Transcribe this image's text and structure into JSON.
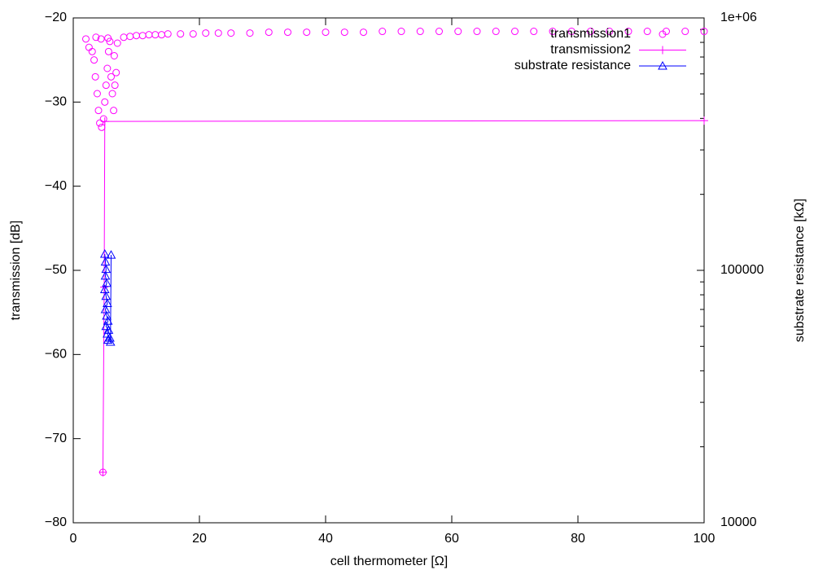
{
  "chart_data": {
    "type": "scatter",
    "x_label": "cell thermometer [Ω]",
    "y_label": "transmission [dB]",
    "y2_label": "substrate resistance [kΩ]",
    "xlim": [
      0,
      100
    ],
    "xticks": [
      0,
      20,
      40,
      60,
      80,
      100
    ],
    "ylim": [
      -80,
      -20
    ],
    "yticks": [
      {
        "value": -80,
        "label": "−80"
      },
      {
        "value": -70,
        "label": "−70"
      },
      {
        "value": -60,
        "label": "−60"
      },
      {
        "value": -50,
        "label": "−50"
      },
      {
        "value": -40,
        "label": "−40"
      },
      {
        "value": -30,
        "label": "−30"
      },
      {
        "value": -20,
        "label": "−20"
      }
    ],
    "y2lim": [
      10000,
      1000000
    ],
    "y2ticks": [
      10000,
      100000,
      {
        "value": 1000000,
        "label": "1e+06"
      }
    ],
    "y2_log": true,
    "legend": "top-right",
    "series": [
      {
        "name": "transmission1",
        "color": "#ff00ff",
        "marker": "circle",
        "line": false,
        "x": [
          2.0,
          2.5,
          3.0,
          3.3,
          3.5,
          3.6,
          3.8,
          4.0,
          4.2,
          4.4,
          4.5,
          4.7,
          4.8,
          5.0,
          5.2,
          5.4,
          5.5,
          5.6,
          5.8,
          6.0,
          6.2,
          6.4,
          6.5,
          6.6,
          6.8,
          7.0,
          8,
          9,
          10,
          11,
          12,
          13,
          14,
          15,
          17,
          19,
          21,
          23,
          25,
          28,
          31,
          34,
          37,
          40,
          43,
          46,
          49,
          52,
          55,
          58,
          61,
          64,
          67,
          70,
          73,
          76,
          79,
          82,
          85,
          88,
          91,
          94,
          97,
          100
        ],
        "y": [
          -22.5,
          -23.5,
          -24,
          -25,
          -27,
          -22.3,
          -29,
          -31,
          -32.5,
          -22.5,
          -33,
          -74,
          -32,
          -30,
          -28,
          -26,
          -22.4,
          -24,
          -22.8,
          -27,
          -29,
          -31,
          -24.5,
          -28,
          -26.5,
          -23,
          -22.3,
          -22.2,
          -22.1,
          -22.1,
          -22.0,
          -22.0,
          -22.0,
          -21.9,
          -21.9,
          -21.9,
          -21.8,
          -21.8,
          -21.8,
          -21.8,
          -21.7,
          -21.7,
          -21.7,
          -21.7,
          -21.7,
          -21.7,
          -21.6,
          -21.6,
          -21.6,
          -21.6,
          -21.6,
          -21.6,
          -21.6,
          -21.6,
          -21.6,
          -21.6,
          -21.6,
          -21.6,
          -21.6,
          -21.6,
          -21.6,
          -21.6,
          -21.6,
          -21.6
        ]
      },
      {
        "name": "transmission2",
        "color": "#ff00ff",
        "marker": "plus",
        "line": true,
        "x": [
          4.7,
          4.9,
          5.0,
          100
        ],
        "y": [
          -74,
          -52,
          -32.3,
          -32.2
        ]
      },
      {
        "name": "substrate resistance",
        "color": "#0000ff",
        "marker": "triangle",
        "line": true,
        "axis": "y2",
        "x": [
          5.0,
          5.1,
          5.2,
          5.1,
          5.3,
          5.0,
          5.2,
          5.4,
          5.1,
          5.3,
          5.5,
          5.2,
          5.6,
          5.4,
          5.8,
          5.5,
          5.9,
          6.0
        ],
        "y": [
          116000,
          108000,
          101000,
          95000,
          89000,
          84000,
          79000,
          74000,
          70000,
          66000,
          63000,
          60000,
          58000,
          56000,
          54000,
          53000,
          52000,
          115000
        ]
      }
    ]
  }
}
